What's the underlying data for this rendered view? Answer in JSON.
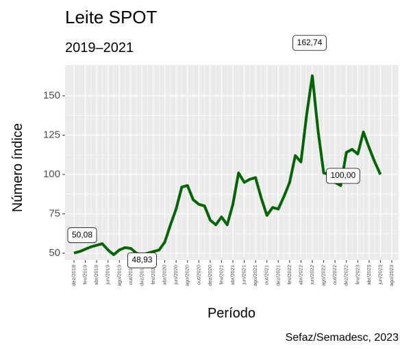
{
  "chart_data": {
    "type": "line",
    "title": "Leite SPOT",
    "subtitle": "2019–2021",
    "x_label": "Período",
    "y_label": "Número índice",
    "caption": "Sefaz/Semadesc, 2023",
    "categories": [
      "dez/2018",
      null,
      "fev/2019",
      null,
      "abr/2019",
      null,
      "jun/2019",
      null,
      "ago/2019",
      null,
      "out/2019",
      null,
      "dez/2019",
      null,
      "fev/2020",
      null,
      "abr/2020",
      null,
      "jun/2020",
      null,
      "ago/2020",
      null,
      "out/2020",
      null,
      "dez/2020",
      null,
      "fev/2021",
      null,
      "abr/2021",
      null,
      "jun/2021",
      null,
      "ago/2021",
      null,
      "out/2021",
      null,
      "dez/2021",
      null,
      "fev/2022",
      null,
      "abr/2022",
      null,
      "jun/2022",
      null,
      "ago/2022",
      null,
      "out/2022",
      null,
      "dez/2022",
      null,
      "fev/2023",
      null,
      "abr/2023",
      null,
      "jun/2023",
      null,
      "ago/2023"
    ],
    "values": [
      50.08,
      51,
      52.5,
      54,
      55,
      56,
      52,
      49,
      52,
      53.5,
      53,
      50,
      48.93,
      50,
      51,
      52,
      57,
      68,
      78,
      92,
      93,
      84,
      81,
      80,
      71,
      68,
      73,
      68,
      81,
      101,
      95,
      97,
      98,
      85,
      74,
      79,
      78,
      86,
      95,
      112,
      108,
      138,
      162.74,
      128,
      101,
      100,
      95,
      93,
      114,
      116,
      113,
      127,
      117,
      108,
      100,
      null,
      null
    ],
    "value_labels": [
      "50,08",
      null,
      null,
      null,
      null,
      null,
      null,
      null,
      null,
      null,
      null,
      null,
      "48,93",
      null,
      null,
      null,
      null,
      null,
      null,
      null,
      null,
      null,
      null,
      null,
      null,
      null,
      null,
      null,
      null,
      null,
      null,
      null,
      null,
      null,
      null,
      null,
      null,
      null,
      null,
      null,
      null,
      null,
      "162,74",
      null,
      null,
      "100,00",
      null,
      null,
      null,
      null,
      null,
      null,
      null,
      null,
      null,
      null,
      null
    ],
    "color": "#006400",
    "ylim": [
      45.6,
      169.6
    ],
    "yticks": [
      50,
      75,
      100,
      125,
      150
    ],
    "grid": true
  }
}
